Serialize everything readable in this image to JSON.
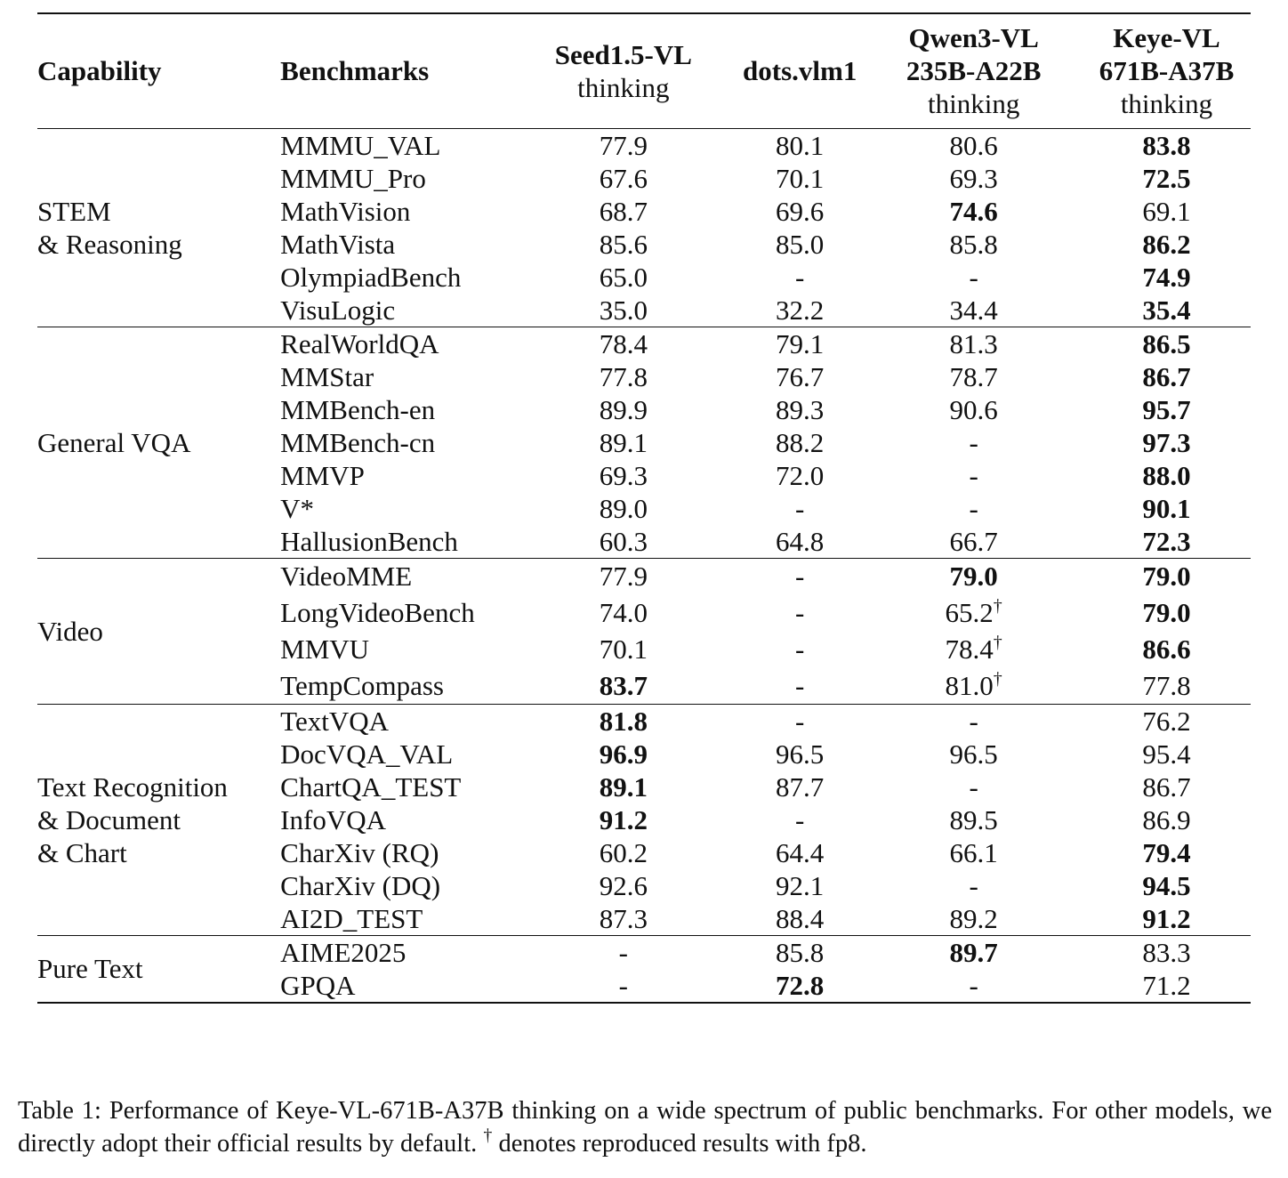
{
  "header": {
    "capability": "Capability",
    "benchmarks": "Benchmarks",
    "models": [
      {
        "bold_lines": [
          "Seed1.5-VL"
        ],
        "normal_lines": [
          "thinking"
        ]
      },
      {
        "bold_lines": [
          "dots.vlm1"
        ],
        "normal_lines": []
      },
      {
        "bold_lines": [
          "Qwen3-VL",
          "235B-A22B"
        ],
        "normal_lines": [
          "thinking"
        ]
      },
      {
        "bold_lines": [
          "Keye-VL",
          "671B-A37B"
        ],
        "normal_lines": [
          "thinking"
        ]
      }
    ]
  },
  "groups": [
    {
      "capability": [
        "STEM",
        "& Reasoning"
      ],
      "rows": [
        {
          "benchmark": "MMMU_VAL",
          "values": [
            "77.9",
            "80.1",
            "80.6",
            "83.8"
          ],
          "bold": [
            3
          ]
        },
        {
          "benchmark": "MMMU_Pro",
          "values": [
            "67.6",
            "70.1",
            "69.3",
            "72.5"
          ],
          "bold": [
            3
          ]
        },
        {
          "benchmark": "MathVision",
          "values": [
            "68.7",
            "69.6",
            "74.6",
            "69.1"
          ],
          "bold": [
            2
          ]
        },
        {
          "benchmark": "MathVista",
          "values": [
            "85.6",
            "85.0",
            "85.8",
            "86.2"
          ],
          "bold": [
            3
          ]
        },
        {
          "benchmark": "OlympiadBench",
          "values": [
            "65.0",
            "-",
            "-",
            "74.9"
          ],
          "bold": [
            3
          ]
        },
        {
          "benchmark": "VisuLogic",
          "values": [
            "35.0",
            "32.2",
            "34.4",
            "35.4"
          ],
          "bold": [
            3
          ]
        }
      ]
    },
    {
      "capability": [
        "General VQA"
      ],
      "rows": [
        {
          "benchmark": "RealWorldQA",
          "values": [
            "78.4",
            "79.1",
            "81.3",
            "86.5"
          ],
          "bold": [
            3
          ]
        },
        {
          "benchmark": "MMStar",
          "values": [
            "77.8",
            "76.7",
            "78.7",
            "86.7"
          ],
          "bold": [
            3
          ]
        },
        {
          "benchmark": "MMBench-en",
          "values": [
            "89.9",
            "89.3",
            "90.6",
            "95.7"
          ],
          "bold": [
            3
          ]
        },
        {
          "benchmark": "MMBench-cn",
          "values": [
            "89.1",
            "88.2",
            "-",
            "97.3"
          ],
          "bold": [
            3
          ]
        },
        {
          "benchmark": "MMVP",
          "values": [
            "69.3",
            "72.0",
            "-",
            "88.0"
          ],
          "bold": [
            3
          ]
        },
        {
          "benchmark": "V*",
          "values": [
            "89.0",
            "-",
            "-",
            "90.1"
          ],
          "bold": [
            3
          ]
        },
        {
          "benchmark": "HallusionBench",
          "values": [
            "60.3",
            "64.8",
            "66.7",
            "72.3"
          ],
          "bold": [
            3
          ]
        }
      ]
    },
    {
      "capability": [
        "Video"
      ],
      "tall": true,
      "rows": [
        {
          "benchmark": "VideoMME",
          "values": [
            "77.9",
            "-",
            "79.0",
            "79.0"
          ],
          "bold": [
            2,
            3
          ]
        },
        {
          "benchmark": "LongVideoBench",
          "values": [
            "74.0",
            "-",
            "65.2†",
            "79.0"
          ],
          "bold": [
            3
          ]
        },
        {
          "benchmark": "MMVU",
          "values": [
            "70.1",
            "-",
            "78.4†",
            "86.6"
          ],
          "bold": [
            3
          ]
        },
        {
          "benchmark": "TempCompass",
          "values": [
            "83.7",
            "-",
            "81.0†",
            "77.8"
          ],
          "bold": [
            0
          ]
        }
      ]
    },
    {
      "capability": [
        "Text Recognition",
        "& Document",
        "& Chart"
      ],
      "rows": [
        {
          "benchmark": "TextVQA",
          "values": [
            "81.8",
            "-",
            "-",
            "76.2"
          ],
          "bold": [
            0
          ]
        },
        {
          "benchmark": "DocVQA_VAL",
          "values": [
            "96.9",
            "96.5",
            "96.5",
            "95.4"
          ],
          "bold": [
            0
          ]
        },
        {
          "benchmark": "ChartQA_TEST",
          "values": [
            "89.1",
            "87.7",
            "-",
            "86.7"
          ],
          "bold": [
            0
          ]
        },
        {
          "benchmark": "InfoVQA",
          "values": [
            "91.2",
            "-",
            "89.5",
            "86.9"
          ],
          "bold": [
            0
          ]
        },
        {
          "benchmark": "CharXiv (RQ)",
          "values": [
            "60.2",
            "64.4",
            "66.1",
            "79.4"
          ],
          "bold": [
            3
          ]
        },
        {
          "benchmark": "CharXiv (DQ)",
          "values": [
            "92.6",
            "92.1",
            "-",
            "94.5"
          ],
          "bold": [
            3
          ]
        },
        {
          "benchmark": "AI2D_TEST",
          "values": [
            "87.3",
            "88.4",
            "89.2",
            "91.2"
          ],
          "bold": [
            3
          ]
        }
      ]
    },
    {
      "capability": [
        "Pure Text"
      ],
      "rows": [
        {
          "benchmark": "AIME2025",
          "values": [
            "-",
            "85.8",
            "89.7",
            "83.3"
          ],
          "bold": [
            2
          ]
        },
        {
          "benchmark": "GPQA",
          "values": [
            "-",
            "72.8",
            "-",
            "71.2"
          ],
          "bold": [
            1
          ]
        }
      ]
    }
  ],
  "caption": "Table 1: Performance of Keye-VL-671B-A37B thinking on a wide spectrum of public benchmarks. For other models, we directly adopt their official results by default. † denotes reproduced results with fp8."
}
